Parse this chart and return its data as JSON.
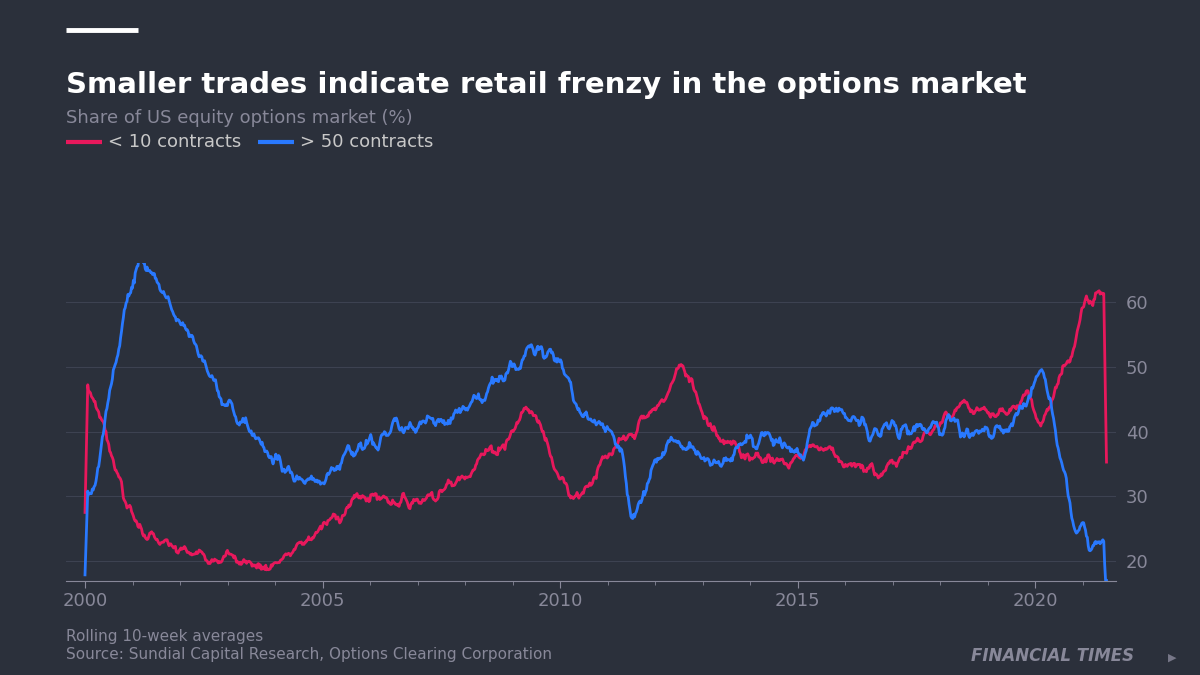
{
  "title": "Smaller trades indicate retail frenzy in the options market",
  "subtitle": "Share of US equity options market (%)",
  "legend": [
    "< 10 contracts",
    "> 50 contracts"
  ],
  "line_colors": [
    "#e8185c",
    "#2979ff"
  ],
  "background_color": "#2b303b",
  "text_color": "#c8c8c8",
  "title_color": "#ffffff",
  "axis_color": "#888899",
  "grid_color": "#3d4251",
  "ylim": [
    17,
    66
  ],
  "yticks": [
    20,
    30,
    40,
    50,
    60
  ],
  "xlabel_years": [
    2000,
    2005,
    2010,
    2015,
    2020
  ],
  "footer_left1": "Rolling 10-week averages",
  "footer_left2": "Source: Sundial Capital Research, Options Clearing Corporation",
  "footer_right": "FINANCIAL TIMES",
  "line_width": 2.0,
  "title_fontsize": 21,
  "subtitle_fontsize": 13,
  "tick_fontsize": 13,
  "legend_fontsize": 13,
  "footer_fontsize": 11
}
